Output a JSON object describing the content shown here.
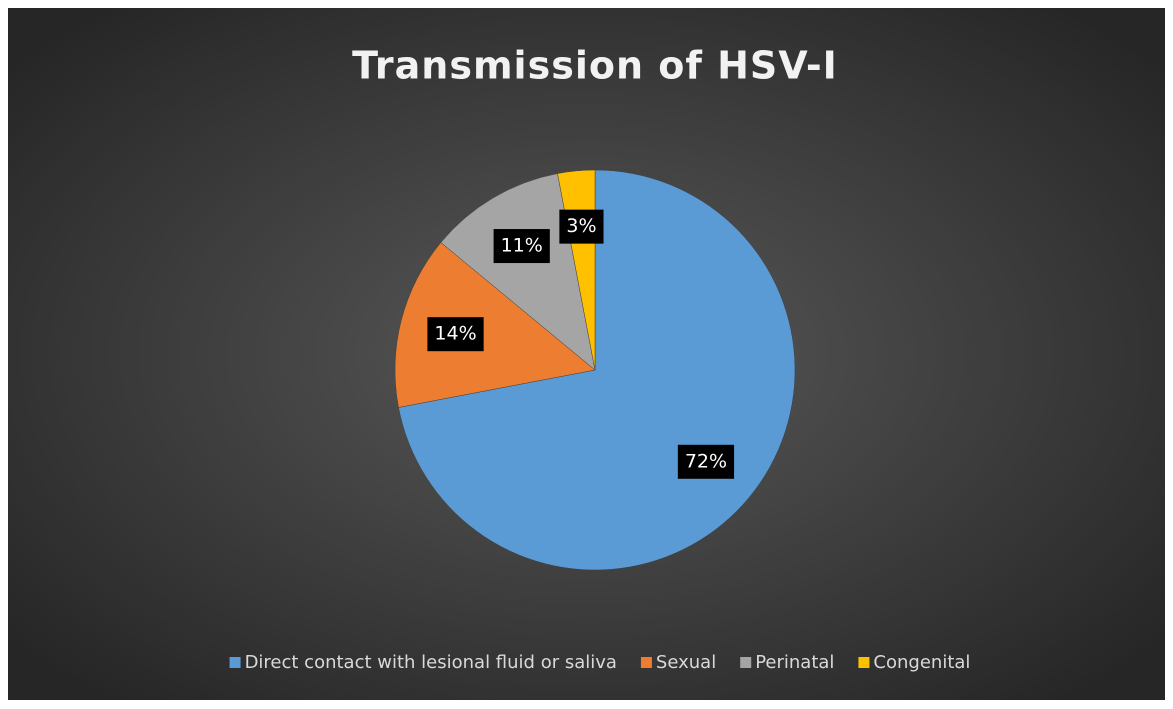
{
  "chart_data": {
    "type": "pie",
    "title": "Transmission  of HSV-I",
    "categories": [
      "Direct contact with lesional fluid or saliva",
      "Sexual",
      "Perinatal",
      "Congenital"
    ],
    "values": [
      72,
      14,
      11,
      3
    ],
    "value_labels": [
      "72%",
      "14%",
      "11%",
      "3%"
    ],
    "colors": [
      "#5b9bd5",
      "#ed7d31",
      "#a5a5a5",
      "#ffc000"
    ],
    "legend": "bottom"
  }
}
